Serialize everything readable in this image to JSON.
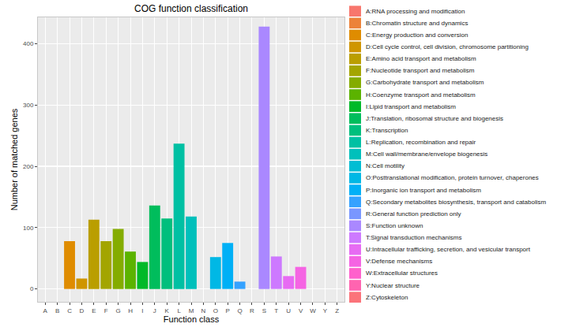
{
  "chart_data": {
    "type": "bar",
    "title": "COG function classification",
    "x_label": "Function class",
    "y_label": "Number of matched genes",
    "categories": [
      "A",
      "B",
      "C",
      "D",
      "E",
      "F",
      "G",
      "H",
      "I",
      "J",
      "K",
      "L",
      "M",
      "N",
      "O",
      "P",
      "Q",
      "R",
      "S",
      "T",
      "U",
      "V",
      "W",
      "Y",
      "Z"
    ],
    "values": [
      0,
      0,
      78,
      17,
      113,
      78,
      98,
      61,
      44,
      136,
      115,
      237,
      118,
      0,
      52,
      75,
      12,
      0,
      428,
      53,
      21,
      36,
      0,
      0,
      0
    ],
    "colors": [
      "#F8766D",
      "#EC8239",
      "#DF8C00",
      "#CF9500",
      "#BA9E00",
      "#A3A500",
      "#84AC00",
      "#5BB300",
      "#00B928",
      "#00BD5C",
      "#00BF7D",
      "#00C0A3",
      "#00C0BB",
      "#00BDD3",
      "#00B8E5",
      "#00B0F6",
      "#35A2FF",
      "#7997FF",
      "#AA88FF",
      "#CD79FF",
      "#E76BF3",
      "#F564E3",
      "#FF61CC",
      "#FF64B0",
      "#FB737A"
    ],
    "legend_entries": [
      "A:RNA processing and modification",
      "B:Chromatin structure and dynamics",
      "C:Energy production and conversion",
      "D:Cell cycle control, cell division, chromosome partitioning",
      "E:Amino acid transport and metabolism",
      "F:Nucleotide transport and metabolism",
      "G:Carbohydrate transport and metabolism",
      "H:Coenzyme transport and metabolism",
      "I:Lipid transport and metabolism",
      "J:Translation, ribosomal structure and biogenesis",
      "K:Transcription",
      "L:Replication, recombination and repair",
      "M:Cell wall/membrane/envelope biogenesis",
      "N:Cell motility",
      "O:Posttranslational modification, protein turnover, chaperones",
      "P:Inorganic ion transport and metabolism",
      "Q:Secondary metabolites biosynthesis, transport and catabolism",
      "R:General function prediction only",
      "S:Function unknown",
      "T:Signal transduction mechanisms",
      "U:Intracellular trafficking, secretion, and vesicular transport",
      "V:Defense mechanisms",
      "W:Extracellular structures",
      "Y:Nuclear structure",
      "Z:Cytoskeleton"
    ],
    "legend": "right",
    "ylim": [
      -21,
      443
    ],
    "yticks": [
      0,
      100,
      200,
      300,
      400
    ],
    "grid": true
  }
}
